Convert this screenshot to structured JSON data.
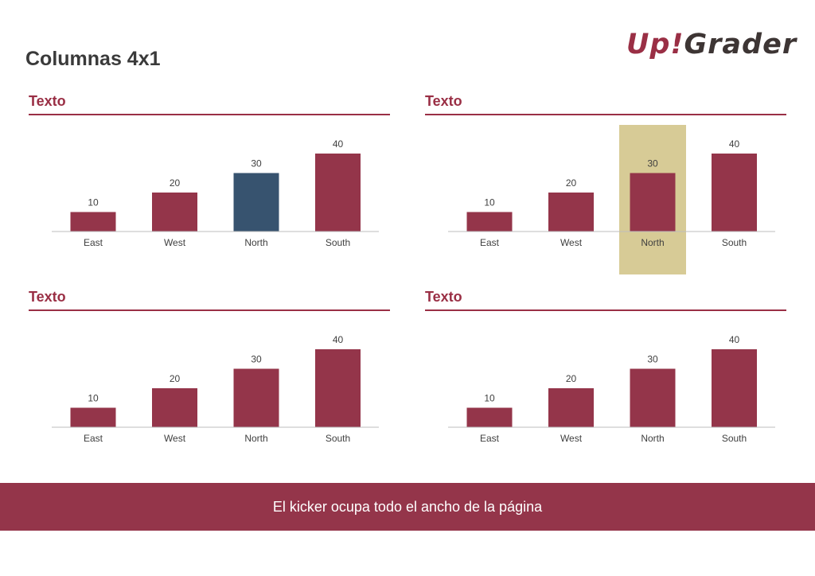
{
  "page_title": "Columnas 4x1",
  "logo": {
    "part1": "Up!",
    "part2": "Grader"
  },
  "kicker": "El kicker ocupa todo el ancho de la página",
  "colors": {
    "bar": "#94354a",
    "highlight_bar": "#37536f",
    "highlight_band": "#d7cb96",
    "axis": "#bdbdbd",
    "label": "#3f3f3f"
  },
  "chart_data": [
    {
      "panel_title": "Texto",
      "type": "bar",
      "categories": [
        "East",
        "West",
        "North",
        "South"
      ],
      "values": [
        10,
        20,
        30,
        40
      ],
      "ylim": [
        0,
        40
      ],
      "highlight_bar": "North"
    },
    {
      "panel_title": "Texto",
      "type": "bar",
      "categories": [
        "East",
        "West",
        "North",
        "South"
      ],
      "values": [
        10,
        20,
        30,
        40
      ],
      "ylim": [
        0,
        40
      ],
      "highlight_band": "North"
    },
    {
      "panel_title": "Texto",
      "type": "bar",
      "categories": [
        "East",
        "West",
        "North",
        "South"
      ],
      "values": [
        10,
        20,
        30,
        40
      ],
      "ylim": [
        0,
        40
      ]
    },
    {
      "panel_title": "Texto",
      "type": "bar",
      "categories": [
        "East",
        "West",
        "North",
        "South"
      ],
      "values": [
        10,
        20,
        30,
        40
      ],
      "ylim": [
        0,
        40
      ]
    }
  ]
}
